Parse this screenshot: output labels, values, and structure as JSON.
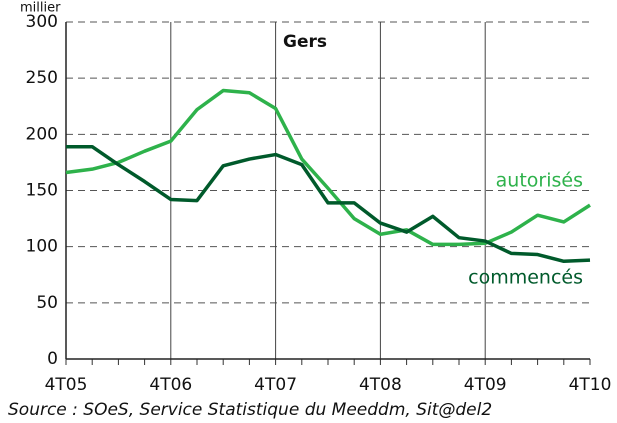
{
  "chart_data": {
    "type": "line",
    "title": "Gers",
    "unit_label": "millier",
    "source": "Source : SOeS, Service Statistique du Meeddm, Sit@del2",
    "categories": [
      "4T05",
      null,
      null,
      null,
      "4T06",
      null,
      null,
      null,
      "4T07",
      null,
      null,
      null,
      "4T08",
      null,
      null,
      null,
      "4T09",
      null,
      null,
      null,
      "4T10"
    ],
    "series": [
      {
        "name": "autorisés",
        "color": "#2eb24b",
        "values": [
          166,
          169,
          175,
          185,
          194,
          222,
          239,
          237,
          223,
          178,
          152,
          125,
          111,
          115,
          102,
          102,
          103,
          113,
          128,
          122,
          137
        ]
      },
      {
        "name": "commencés",
        "color": "#005a2b",
        "values": [
          189,
          189,
          173,
          158,
          142,
          141,
          172,
          178,
          182,
          173,
          139,
          139,
          121,
          113,
          127,
          108,
          105,
          94,
          93,
          87,
          88
        ]
      }
    ],
    "ylim": [
      0,
      300
    ],
    "yticks": [
      0,
      50,
      100,
      150,
      200,
      250,
      300
    ],
    "grid": true
  }
}
